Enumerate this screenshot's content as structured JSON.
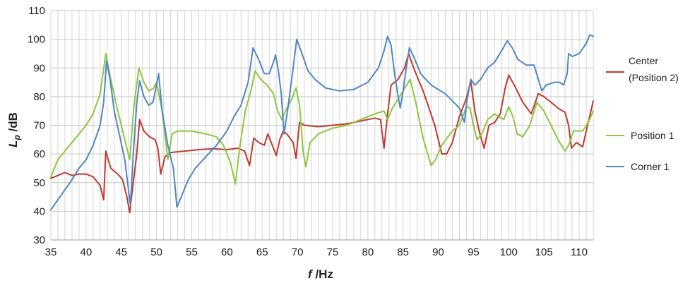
{
  "chart_data": {
    "type": "line",
    "xlabel": {
      "symbol": "f",
      "unit": " /Hz"
    },
    "ylabel": {
      "symbol": "L",
      "subscript": "p",
      "unit": " /dB"
    },
    "xlim": [
      35,
      112
    ],
    "ylim": [
      30,
      110
    ],
    "xticks": [
      35,
      40,
      45,
      50,
      55,
      60,
      65,
      70,
      75,
      80,
      85,
      90,
      95,
      100,
      105,
      110
    ],
    "yticks": [
      30,
      40,
      50,
      60,
      70,
      80,
      90,
      100,
      110
    ],
    "grid": {
      "vertical_step_hz": 1,
      "horizontal": true
    },
    "legend_position": "right",
    "series": [
      {
        "name": "Center (Position 2)",
        "legend_lines": [
          "Center",
          "(Position 2)"
        ],
        "color": "#c0392b",
        "points": [
          [
            35,
            51.5
          ],
          [
            36,
            52.5
          ],
          [
            37,
            53.5
          ],
          [
            38,
            52.5
          ],
          [
            39,
            53
          ],
          [
            40,
            53
          ],
          [
            41,
            52
          ],
          [
            42,
            49
          ],
          [
            42.5,
            44
          ],
          [
            42.8,
            61
          ],
          [
            43.5,
            55
          ],
          [
            44.5,
            53
          ],
          [
            45.2,
            51
          ],
          [
            45.8,
            45
          ],
          [
            46.2,
            39.5
          ],
          [
            46.6,
            48
          ],
          [
            47.2,
            60
          ],
          [
            47.6,
            72
          ],
          [
            48.2,
            68
          ],
          [
            49,
            66
          ],
          [
            49.8,
            65
          ],
          [
            50.2,
            62
          ],
          [
            50.6,
            53
          ],
          [
            51.2,
            59
          ],
          [
            52,
            60.5
          ],
          [
            54,
            61
          ],
          [
            56,
            61.5
          ],
          [
            58,
            61.8
          ],
          [
            60,
            61.5
          ],
          [
            61.5,
            62
          ],
          [
            62.5,
            61
          ],
          [
            63.2,
            56
          ],
          [
            63.8,
            65.5
          ],
          [
            64.5,
            64
          ],
          [
            65.3,
            63
          ],
          [
            65.8,
            67
          ],
          [
            66.6,
            62
          ],
          [
            67,
            59.5
          ],
          [
            67.5,
            65
          ],
          [
            68,
            68
          ],
          [
            68.5,
            67
          ],
          [
            69.4,
            64
          ],
          [
            69.8,
            58.5
          ],
          [
            70.3,
            71
          ],
          [
            71,
            70
          ],
          [
            73,
            69.5
          ],
          [
            75,
            70
          ],
          [
            77,
            70.5
          ],
          [
            79,
            71.5
          ],
          [
            81,
            72.5
          ],
          [
            81.8,
            72
          ],
          [
            82.3,
            62
          ],
          [
            82.8,
            74
          ],
          [
            83.3,
            84
          ],
          [
            84.3,
            86
          ],
          [
            85.2,
            90
          ],
          [
            85.8,
            95
          ],
          [
            86.5,
            90
          ],
          [
            88,
            81
          ],
          [
            89.5,
            70
          ],
          [
            90.5,
            60
          ],
          [
            91.2,
            60
          ],
          [
            92,
            64
          ],
          [
            93,
            73
          ],
          [
            94,
            79.5
          ],
          [
            94.6,
            85.5
          ],
          [
            95.2,
            75
          ],
          [
            95.8,
            68
          ],
          [
            96.5,
            62
          ],
          [
            97.2,
            70
          ],
          [
            98,
            71
          ],
          [
            98.8,
            74
          ],
          [
            99.5,
            83
          ],
          [
            100,
            87.5
          ],
          [
            101,
            83
          ],
          [
            102,
            78
          ],
          [
            103.2,
            74
          ],
          [
            104.2,
            81
          ],
          [
            105,
            80
          ],
          [
            106,
            78
          ],
          [
            107,
            76
          ],
          [
            108,
            74.5
          ],
          [
            108.5,
            70
          ],
          [
            108.9,
            62
          ],
          [
            109.6,
            64
          ],
          [
            110.5,
            62.5
          ],
          [
            111.2,
            70
          ],
          [
            112,
            78.5
          ]
        ]
      },
      {
        "name": "Position 1",
        "legend_lines": [
          "Position 1"
        ],
        "color": "#8dc63f",
        "points": [
          [
            35,
            52
          ],
          [
            36,
            58
          ],
          [
            37,
            61
          ],
          [
            38,
            64
          ],
          [
            39,
            67
          ],
          [
            40,
            70
          ],
          [
            41,
            74
          ],
          [
            42,
            81
          ],
          [
            42.8,
            95
          ],
          [
            43.5,
            86
          ],
          [
            44.5,
            75
          ],
          [
            45.5,
            65
          ],
          [
            46.2,
            58
          ],
          [
            46.8,
            77
          ],
          [
            47.5,
            90
          ],
          [
            48.2,
            85
          ],
          [
            48.9,
            82
          ],
          [
            49.6,
            83
          ],
          [
            50,
            85
          ],
          [
            50.8,
            75
          ],
          [
            51.6,
            58
          ],
          [
            52.2,
            67
          ],
          [
            53,
            68
          ],
          [
            55,
            68
          ],
          [
            57,
            67
          ],
          [
            58.5,
            66
          ],
          [
            59.5,
            63
          ],
          [
            60.5,
            57
          ],
          [
            61.2,
            49.5
          ],
          [
            61.8,
            62
          ],
          [
            62.6,
            75
          ],
          [
            63.4,
            82
          ],
          [
            64,
            89
          ],
          [
            64.8,
            86
          ],
          [
            65.7,
            84
          ],
          [
            66.6,
            81
          ],
          [
            67.2,
            75
          ],
          [
            67.8,
            72
          ],
          [
            68.5,
            76
          ],
          [
            69.2,
            79
          ],
          [
            69.8,
            83
          ],
          [
            70.3,
            77
          ],
          [
            70.8,
            61
          ],
          [
            71.2,
            55.5
          ],
          [
            71.8,
            64
          ],
          [
            73,
            67
          ],
          [
            75,
            69
          ],
          [
            77,
            70
          ],
          [
            79,
            72
          ],
          [
            81,
            74
          ],
          [
            82.3,
            75
          ],
          [
            82.8,
            72
          ],
          [
            83.5,
            76
          ],
          [
            84.5,
            80
          ],
          [
            85.5,
            84
          ],
          [
            86,
            86
          ],
          [
            86.8,
            78
          ],
          [
            87.8,
            66
          ],
          [
            88.5,
            60
          ],
          [
            89,
            56
          ],
          [
            89.6,
            58
          ],
          [
            90.5,
            63
          ],
          [
            92,
            68
          ],
          [
            93,
            70
          ],
          [
            94,
            76.5
          ],
          [
            94.5,
            76
          ],
          [
            95,
            70
          ],
          [
            95.5,
            65
          ],
          [
            96.2,
            67
          ],
          [
            97,
            72
          ],
          [
            98,
            74
          ],
          [
            99.3,
            72
          ],
          [
            100,
            76.5
          ],
          [
            100.6,
            73
          ],
          [
            101.2,
            67
          ],
          [
            102,
            66
          ],
          [
            103,
            70
          ],
          [
            104,
            78
          ],
          [
            105,
            75
          ],
          [
            106,
            70
          ],
          [
            107,
            65
          ],
          [
            108,
            61
          ],
          [
            108.5,
            63
          ],
          [
            109.2,
            68
          ],
          [
            110.5,
            68
          ],
          [
            111.3,
            71
          ],
          [
            112,
            75
          ]
        ]
      },
      {
        "name": "Corner 1",
        "legend_lines": [
          "Corner 1"
        ],
        "color": "#4f86c6",
        "points": [
          [
            35,
            40.5
          ],
          [
            36,
            44
          ],
          [
            37,
            47.5
          ],
          [
            38,
            51
          ],
          [
            39,
            55
          ],
          [
            40,
            58
          ],
          [
            41,
            63
          ],
          [
            42,
            70
          ],
          [
            42.5,
            78
          ],
          [
            42.9,
            92.5
          ],
          [
            43.4,
            86
          ],
          [
            44,
            75
          ],
          [
            44.8,
            66
          ],
          [
            45.5,
            58
          ],
          [
            46,
            48
          ],
          [
            46.3,
            42
          ],
          [
            46.7,
            60
          ],
          [
            47.2,
            78
          ],
          [
            47.6,
            85.5
          ],
          [
            48.2,
            80
          ],
          [
            48.9,
            77
          ],
          [
            49.5,
            78
          ],
          [
            50,
            84
          ],
          [
            50.3,
            88
          ],
          [
            50.8,
            75
          ],
          [
            51.6,
            63
          ],
          [
            52.4,
            55
          ],
          [
            52.9,
            41.5
          ],
          [
            53.5,
            45
          ],
          [
            54.5,
            51
          ],
          [
            55.5,
            55
          ],
          [
            57,
            59
          ],
          [
            58.5,
            63
          ],
          [
            60,
            68
          ],
          [
            61,
            73
          ],
          [
            62,
            77
          ],
          [
            63,
            85
          ],
          [
            63.7,
            97
          ],
          [
            64.5,
            93
          ],
          [
            65.3,
            88
          ],
          [
            66,
            88
          ],
          [
            66.6,
            92
          ],
          [
            66.9,
            94.5
          ],
          [
            67.3,
            89
          ],
          [
            67.7,
            81
          ],
          [
            68.1,
            67
          ],
          [
            68.6,
            75
          ],
          [
            69.3,
            88
          ],
          [
            69.9,
            100
          ],
          [
            70.5,
            96
          ],
          [
            71.5,
            89
          ],
          [
            72.5,
            86
          ],
          [
            74,
            83
          ],
          [
            76,
            82
          ],
          [
            78,
            82.5
          ],
          [
            80,
            85
          ],
          [
            81.5,
            90
          ],
          [
            82.3,
            96
          ],
          [
            82.8,
            101
          ],
          [
            83.3,
            98
          ],
          [
            83.8,
            88
          ],
          [
            84.3,
            80
          ],
          [
            84.6,
            76
          ],
          [
            85,
            82
          ],
          [
            85.4,
            89
          ],
          [
            85.9,
            97
          ],
          [
            86.5,
            94
          ],
          [
            87.5,
            88
          ],
          [
            89,
            84
          ],
          [
            91,
            81
          ],
          [
            93,
            76
          ],
          [
            93.7,
            71
          ],
          [
            94.1,
            79
          ],
          [
            94.6,
            86
          ],
          [
            95.2,
            84
          ],
          [
            96,
            86
          ],
          [
            97,
            90
          ],
          [
            98,
            92
          ],
          [
            99,
            96
          ],
          [
            99.8,
            99.5
          ],
          [
            100.5,
            97
          ],
          [
            101.3,
            93
          ],
          [
            102.5,
            91
          ],
          [
            103.6,
            91
          ],
          [
            104.2,
            86
          ],
          [
            104.7,
            82
          ],
          [
            105.3,
            84
          ],
          [
            106.5,
            85
          ],
          [
            107.2,
            85
          ],
          [
            107.8,
            84
          ],
          [
            108.3,
            88
          ],
          [
            108.5,
            95
          ],
          [
            109,
            94
          ],
          [
            110,
            95
          ],
          [
            111,
            98.5
          ],
          [
            111.5,
            101.5
          ],
          [
            112,
            101
          ]
        ]
      }
    ]
  }
}
